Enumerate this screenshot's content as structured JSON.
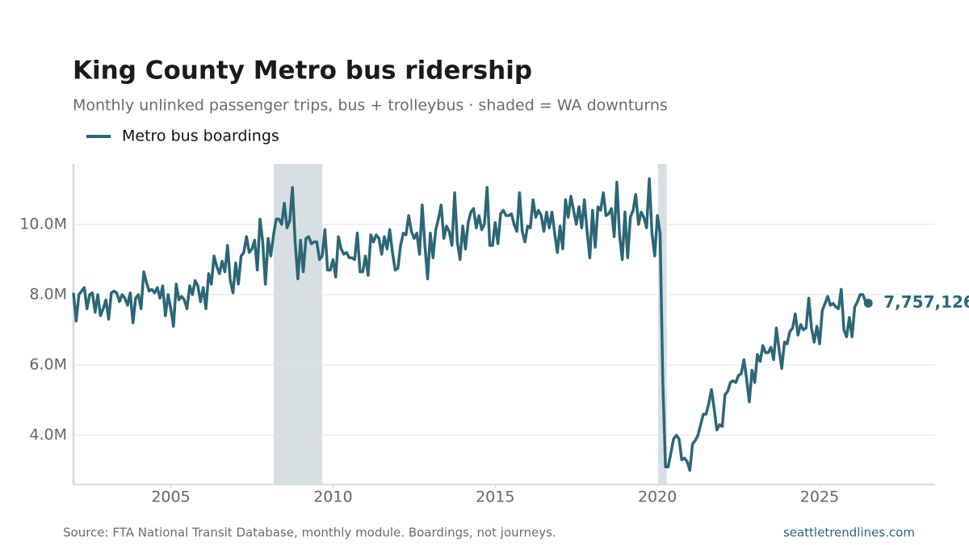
{
  "chart_data": {
    "type": "line",
    "title": "King County Metro bus ridership",
    "subtitle": "Monthly unlinked passenger trips, bus + trolleybus · shaded = WA downturns",
    "source": "Source: FTA National Transit Database, monthly module. Boardings, not journeys.",
    "credit": "seattletrendlines.com",
    "xlim": [
      2002,
      2028.56
    ],
    "xticks": [
      2005,
      2010,
      2015,
      2020,
      2025
    ],
    "ylim": [
      2600000,
      11720000
    ],
    "yticks": [
      {
        "value": 4000000,
        "label": "4.0M"
      },
      {
        "value": 6000000,
        "label": "6.0M"
      },
      {
        "value": 8000000,
        "label": "8.0M"
      },
      {
        "value": 10000000,
        "label": "10.0M"
      }
    ],
    "grid": true,
    "shaded_periods": [
      [
        2008.17,
        2009.67
      ],
      [
        2020.02,
        2020.29
      ]
    ],
    "shade_color": "#d7dfe3",
    "x": [
      2002,
      2002.083,
      2002.167,
      2002.25,
      2002.333,
      2002.417,
      2002.5,
      2002.583,
      2002.667,
      2002.75,
      2002.833,
      2002.917,
      2003,
      2003.083,
      2003.167,
      2003.25,
      2003.333,
      2003.417,
      2003.5,
      2003.583,
      2003.667,
      2003.75,
      2003.833,
      2003.917,
      2004,
      2004.083,
      2004.167,
      2004.25,
      2004.333,
      2004.417,
      2004.5,
      2004.583,
      2004.667,
      2004.75,
      2004.833,
      2004.917,
      2005,
      2005.083,
      2005.167,
      2005.25,
      2005.333,
      2005.417,
      2005.5,
      2005.583,
      2005.667,
      2005.75,
      2005.833,
      2005.917,
      2006,
      2006.083,
      2006.167,
      2006.25,
      2006.333,
      2006.417,
      2006.5,
      2006.583,
      2006.667,
      2006.75,
      2006.833,
      2006.917,
      2007,
      2007.083,
      2007.167,
      2007.25,
      2007.333,
      2007.417,
      2007.5,
      2007.583,
      2007.667,
      2007.75,
      2007.833,
      2007.917,
      2008,
      2008.083,
      2008.167,
      2008.25,
      2008.333,
      2008.417,
      2008.5,
      2008.583,
      2008.667,
      2008.75,
      2008.833,
      2008.917,
      2009,
      2009.083,
      2009.167,
      2009.25,
      2009.333,
      2009.417,
      2009.5,
      2009.583,
      2009.667,
      2009.75,
      2009.833,
      2009.917,
      2010,
      2010.083,
      2010.167,
      2010.25,
      2010.333,
      2010.417,
      2010.5,
      2010.583,
      2010.667,
      2010.75,
      2010.833,
      2010.917,
      2011,
      2011.083,
      2011.167,
      2011.25,
      2011.333,
      2011.417,
      2011.5,
      2011.583,
      2011.667,
      2011.75,
      2011.833,
      2011.917,
      2012,
      2012.083,
      2012.167,
      2012.25,
      2012.333,
      2012.417,
      2012.5,
      2012.583,
      2012.667,
      2012.75,
      2012.833,
      2012.917,
      2013,
      2013.083,
      2013.167,
      2013.25,
      2013.333,
      2013.417,
      2013.5,
      2013.583,
      2013.667,
      2013.75,
      2013.833,
      2013.917,
      2014,
      2014.083,
      2014.167,
      2014.25,
      2014.333,
      2014.417,
      2014.5,
      2014.583,
      2014.667,
      2014.75,
      2014.833,
      2014.917,
      2015,
      2015.083,
      2015.167,
      2015.25,
      2015.333,
      2015.417,
      2015.5,
      2015.583,
      2015.667,
      2015.75,
      2015.833,
      2015.917,
      2016,
      2016.083,
      2016.167,
      2016.25,
      2016.333,
      2016.417,
      2016.5,
      2016.583,
      2016.667,
      2016.75,
      2016.833,
      2016.917,
      2017,
      2017.083,
      2017.167,
      2017.25,
      2017.333,
      2017.417,
      2017.5,
      2017.583,
      2017.667,
      2017.75,
      2017.833,
      2017.917,
      2018,
      2018.083,
      2018.167,
      2018.25,
      2018.333,
      2018.417,
      2018.5,
      2018.583,
      2018.667,
      2018.75,
      2018.833,
      2018.917,
      2019,
      2019.083,
      2019.167,
      2019.25,
      2019.333,
      2019.417,
      2019.5,
      2019.583,
      2019.667,
      2019.75,
      2019.833,
      2019.917,
      2020,
      2020.083,
      2020.167,
      2020.25,
      2020.333,
      2020.417,
      2020.5,
      2020.583,
      2020.667,
      2020.75,
      2020.833,
      2020.917,
      2021,
      2021.083,
      2021.167,
      2021.25,
      2021.333,
      2021.417,
      2021.5,
      2021.583,
      2021.667,
      2021.75,
      2021.833,
      2021.917,
      2022,
      2022.083,
      2022.167,
      2022.25,
      2022.333,
      2022.417,
      2022.5,
      2022.583,
      2022.667,
      2022.75,
      2022.833,
      2022.917,
      2023,
      2023.083,
      2023.167,
      2023.25,
      2023.333,
      2023.417,
      2023.5,
      2023.583,
      2023.667,
      2023.75,
      2023.833,
      2023.917,
      2024,
      2024.083,
      2024.167,
      2024.25,
      2024.333,
      2024.417,
      2024.5,
      2024.583,
      2024.667,
      2024.75,
      2024.833,
      2024.917,
      2025,
      2025.083,
      2025.167,
      2025.25,
      2025.333,
      2025.417,
      2025.5,
      2025.583,
      2025.667,
      2025.75,
      2025.833,
      2025.917,
      2026,
      2026.083,
      2026.167,
      2026.25,
      2026.333,
      2026.417,
      2026.5
    ],
    "series": [
      {
        "name": "Metro bus boardings",
        "color": "#2b6777",
        "end_label": "7,757,126",
        "values": [
          8050000,
          7250000,
          8000000,
          8100000,
          8200000,
          7600000,
          8000000,
          8050000,
          7500000,
          8000000,
          7400000,
          7600000,
          7850000,
          7300000,
          8050000,
          8100000,
          8050000,
          7800000,
          8000000,
          7900000,
          7700000,
          8050000,
          7200000,
          7900000,
          8000000,
          7600000,
          8650000,
          8350000,
          8100000,
          8150000,
          8050000,
          8200000,
          7900000,
          8250000,
          7400000,
          8000000,
          7600000,
          7100000,
          8300000,
          7850000,
          7950000,
          7850000,
          7600000,
          8250000,
          8000000,
          8400000,
          8250000,
          7800000,
          8200000,
          7600000,
          8600000,
          8300000,
          9100000,
          8800000,
          8600000,
          8950000,
          8650000,
          9400000,
          8400000,
          8050000,
          8900000,
          8300000,
          9100000,
          9200000,
          9650000,
          9200000,
          9300000,
          9550000,
          8700000,
          10150000,
          9500000,
          8300000,
          9600000,
          9100000,
          9700000,
          10150000,
          10150000,
          10000000,
          10600000,
          9900000,
          10100000,
          11050000,
          9500000,
          8450000,
          9550000,
          8650000,
          9600000,
          9650000,
          9450000,
          9500000,
          9500000,
          9000000,
          9100000,
          9850000,
          8700000,
          8700000,
          9000000,
          8500000,
          9650000,
          9300000,
          9150000,
          9200000,
          9050000,
          9050000,
          9000000,
          9750000,
          8650000,
          8650000,
          9100000,
          8550000,
          9700000,
          9500000,
          9700000,
          9600000,
          9150000,
          9650000,
          9300000,
          9850000,
          9200000,
          8700000,
          8750000,
          9400000,
          9750000,
          9700000,
          10250000,
          9800000,
          9600000,
          9750000,
          9150000,
          10550000,
          9400000,
          8450000,
          9750000,
          9050000,
          9850000,
          10150000,
          10550000,
          9600000,
          9950000,
          9800000,
          9400000,
          10900000,
          9500000,
          9000000,
          9950000,
          9300000,
          10050000,
          10350000,
          10450000,
          9900000,
          10250000,
          9850000,
          10000000,
          11050000,
          9400000,
          9400000,
          10050000,
          9450000,
          10300000,
          10400000,
          10250000,
          10250000,
          10300000,
          10000000,
          9800000,
          10900000,
          9800000,
          9500000,
          9950000,
          9900000,
          10700000,
          10200000,
          10400000,
          10250000,
          9800000,
          10350000,
          9900000,
          10350000,
          9750000,
          9200000,
          9950000,
          9300000,
          10700000,
          10200000,
          10800000,
          10400000,
          10000000,
          10500000,
          9900000,
          10700000,
          9800000,
          9050000,
          10400000,
          9350000,
          10500000,
          10400000,
          10900000,
          10250000,
          10300000,
          10450000,
          9650000,
          11200000,
          9700000,
          9000000,
          10350000,
          9050000,
          10200000,
          10400000,
          10850000,
          10000000,
          10350000,
          10200000,
          9900000,
          11300000,
          9750000,
          9100000,
          10250000,
          9750000,
          5500000,
          3100000,
          3100000,
          3500000,
          3900000,
          4000000,
          3900000,
          3300000,
          3350000,
          3250000,
          3000000,
          3750000,
          3850000,
          4000000,
          4300000,
          4600000,
          4600000,
          4900000,
          5300000,
          4750000,
          4150000,
          4300000,
          4250000,
          5150000,
          5250000,
          5500000,
          5550000,
          5500000,
          5700000,
          5750000,
          6150000,
          5600000,
          4950000,
          5850000,
          5500000,
          6300000,
          6100000,
          6550000,
          6350000,
          6350000,
          6500000,
          6150000,
          7050000,
          6450000,
          5900000,
          6650000,
          6600000,
          6950000,
          7050000,
          7450000,
          6850000,
          7150000,
          7000000,
          7050000,
          7900000,
          7050000,
          6650000,
          7100000,
          6600000,
          7550000,
          7750000,
          7950000,
          7700000,
          7750000,
          7650000,
          7600000,
          8150000,
          7000000,
          6800000,
          7350000,
          6800000,
          7650000,
          7800000,
          8000000,
          8000000,
          7800000,
          7757126
        ]
      }
    ]
  }
}
